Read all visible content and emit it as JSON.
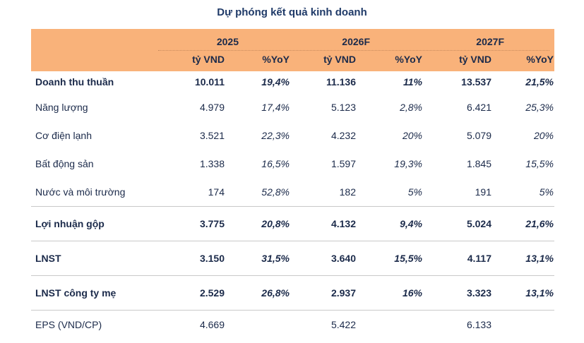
{
  "title": "Dự phóng kết quả kinh doanh",
  "header": {
    "years": [
      "2025",
      "2026F",
      "2027F"
    ],
    "units": [
      "tỷ VND",
      "%YoY",
      "tỷ VND",
      "%YoY",
      "tỷ VND",
      "%YoY"
    ]
  },
  "rows": [
    {
      "label": "Doanh thu thuần",
      "bold": true,
      "cells": [
        "10.011",
        "19,4%",
        "11.136",
        "11%",
        "13.537",
        "21,5%"
      ]
    },
    {
      "label": "Năng lượng",
      "bold": false,
      "cells": [
        "4.979",
        "17,4%",
        "5.123",
        "2,8%",
        "6.421",
        "25,3%"
      ]
    },
    {
      "label": "Cơ điện lạnh",
      "bold": false,
      "cells": [
        "3.521",
        "22,3%",
        "4.232",
        "20%",
        "5.079",
        "20%"
      ]
    },
    {
      "label": "Bất động sản",
      "bold": false,
      "cells": [
        "1.338",
        "16,5%",
        "1.597",
        "19,3%",
        "1.845",
        "15,5%"
      ]
    },
    {
      "label": "Nước và môi trường",
      "bold": false,
      "cells": [
        "174",
        "52,8%",
        "182",
        "5%",
        "191",
        "5%"
      ]
    },
    {
      "label": "Lợi nhuận gộp",
      "bold": true,
      "cells": [
        "3.775",
        "20,8%",
        "4.132",
        "9,4%",
        "5.024",
        "21,6%"
      ]
    },
    {
      "label": "LNST",
      "bold": true,
      "cells": [
        "3.150",
        "31,5%",
        "3.640",
        "15,5%",
        "4.117",
        "13,1%"
      ]
    },
    {
      "label": "LNST công ty mẹ",
      "bold": true,
      "cells": [
        "2.529",
        "26,8%",
        "2.937",
        "16%",
        "3.323",
        "13,1%"
      ]
    },
    {
      "label": "EPS (VND/CP)",
      "bold": false,
      "cells": [
        "4.669",
        "",
        "5.422",
        "",
        "6.133",
        ""
      ]
    }
  ]
}
